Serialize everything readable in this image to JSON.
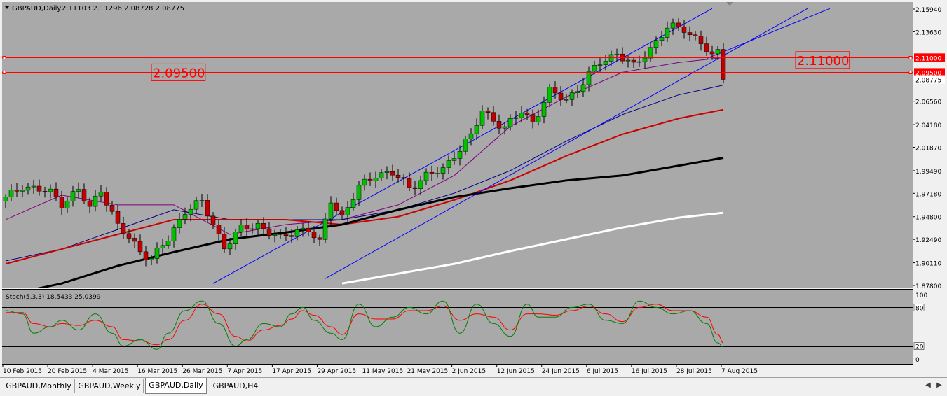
{
  "window": {
    "title": "GBPAUD,Daily",
    "ohlc": "2.11103 2.11296 2.08728 2.08775"
  },
  "colors": {
    "chart_bg": "#a9a9a9",
    "bull": "#00c000",
    "bear": "#c00000",
    "channel": "#0000ff",
    "level": "#ff0000",
    "stoch_main": "#008000",
    "stoch_signal": "#ff0000"
  },
  "labels": {
    "level_left": "2.09500",
    "level_right": "2.11000"
  },
  "chart_data": {
    "type": "candlestick",
    "symbol": "GBPAUD",
    "timeframe": "Daily",
    "ylim": [
      1.878,
      2.1594
    ],
    "price_ticks": [
      "2.15940",
      "2.13630",
      "2.11000",
      "2.09500",
      "2.08775",
      "2.06560",
      "2.04180",
      "2.01870",
      "1.99490",
      "1.97180",
      "1.94800",
      "1.92490",
      "1.90110",
      "1.87800"
    ],
    "current_price": "2.08775",
    "horizontal_levels": [
      2.11,
      2.095
    ],
    "date_labels": [
      "10 Feb 2015",
      "20 Feb 2015",
      "4 Mar 2015",
      "16 Mar 2015",
      "26 Mar 2015",
      "7 Apr 2015",
      "17 Apr 2015",
      "29 Apr 2015",
      "11 May 2015",
      "21 May 2015",
      "2 Jun 2015",
      "12 Jun 2015",
      "24 Jun 2015",
      "6 Jul 2015",
      "16 Jul 2015",
      "28 Jul 2015",
      "7 Aug 2015"
    ],
    "close_path": [
      [
        0,
        1.966
      ],
      [
        3,
        1.98
      ],
      [
        8,
        1.972
      ],
      [
        10,
        1.962
      ],
      [
        13,
        1.975
      ],
      [
        15,
        1.956
      ],
      [
        17,
        1.977
      ],
      [
        20,
        1.938
      ],
      [
        24,
        1.914
      ],
      [
        26,
        1.905
      ],
      [
        29,
        1.925
      ],
      [
        32,
        1.955
      ],
      [
        35,
        1.962
      ],
      [
        37,
        1.94
      ],
      [
        39,
        1.918
      ],
      [
        42,
        1.935
      ],
      [
        45,
        1.94
      ],
      [
        49,
        1.925
      ],
      [
        52,
        1.935
      ],
      [
        54,
        1.935
      ],
      [
        56,
        1.92
      ],
      [
        58,
        1.966
      ],
      [
        60,
        1.948
      ],
      [
        63,
        1.977
      ],
      [
        66,
        1.992
      ],
      [
        69,
        1.992
      ],
      [
        72,
        1.978
      ],
      [
        75,
        1.99
      ],
      [
        78,
        1.995
      ],
      [
        80,
        2.012
      ],
      [
        83,
        2.03
      ],
      [
        85,
        2.055
      ],
      [
        87,
        2.048
      ],
      [
        89,
        2.038
      ],
      [
        92,
        2.055
      ],
      [
        94,
        2.045
      ],
      [
        97,
        2.075
      ],
      [
        100,
        2.067
      ],
      [
        103,
        2.085
      ],
      [
        106,
        2.105
      ],
      [
        109,
        2.115
      ],
      [
        112,
        2.1
      ],
      [
        115,
        2.12
      ],
      [
        118,
        2.14
      ],
      [
        121,
        2.14
      ],
      [
        124,
        2.125
      ],
      [
        126,
        2.11
      ],
      [
        127,
        2.115
      ],
      [
        128,
        2.0878
      ]
    ],
    "moving_averages": [
      {
        "color": "#800080",
        "width": 1,
        "points": [
          [
            0,
            1.945
          ],
          [
            10,
            1.97
          ],
          [
            20,
            1.96
          ],
          [
            30,
            1.96
          ],
          [
            40,
            1.93
          ],
          [
            50,
            1.94
          ],
          [
            60,
            1.945
          ],
          [
            70,
            1.96
          ],
          [
            80,
            1.99
          ],
          [
            90,
            2.04
          ],
          [
            100,
            2.07
          ],
          [
            110,
            2.095
          ],
          [
            120,
            2.105
          ],
          [
            128,
            2.11
          ]
        ]
      },
      {
        "color": "#000080",
        "width": 1,
        "points": [
          [
            0,
            1.903
          ],
          [
            10,
            1.915
          ],
          [
            20,
            1.935
          ],
          [
            30,
            1.955
          ],
          [
            40,
            1.945
          ],
          [
            50,
            1.945
          ],
          [
            60,
            1.945
          ],
          [
            70,
            1.955
          ],
          [
            80,
            1.972
          ],
          [
            90,
            1.995
          ],
          [
            100,
            2.025
          ],
          [
            110,
            2.052
          ],
          [
            120,
            2.072
          ],
          [
            128,
            2.082
          ]
        ]
      },
      {
        "color": "#cc0000",
        "width": 2,
        "points": [
          [
            0,
            1.9
          ],
          [
            10,
            1.915
          ],
          [
            20,
            1.93
          ],
          [
            30,
            1.945
          ],
          [
            40,
            1.945
          ],
          [
            50,
            1.945
          ],
          [
            60,
            1.94
          ],
          [
            70,
            1.948
          ],
          [
            80,
            1.965
          ],
          [
            90,
            1.985
          ],
          [
            100,
            2.01
          ],
          [
            110,
            2.032
          ],
          [
            120,
            2.048
          ],
          [
            128,
            2.057
          ]
        ]
      },
      {
        "color": "#000000",
        "width": 3,
        "points": [
          [
            0,
            1.868
          ],
          [
            10,
            1.88
          ],
          [
            20,
            1.898
          ],
          [
            30,
            1.912
          ],
          [
            40,
            1.925
          ],
          [
            50,
            1.932
          ],
          [
            60,
            1.94
          ],
          [
            70,
            1.955
          ],
          [
            80,
            1.968
          ],
          [
            90,
            1.977
          ],
          [
            100,
            1.985
          ],
          [
            110,
            1.99
          ],
          [
            120,
            2.0
          ],
          [
            128,
            2.008
          ]
        ]
      },
      {
        "color": "#ffffff",
        "width": 3,
        "points": [
          [
            60,
            1.88
          ],
          [
            70,
            1.89
          ],
          [
            80,
            1.9
          ],
          [
            90,
            1.913
          ],
          [
            100,
            1.925
          ],
          [
            110,
            1.937
          ],
          [
            120,
            1.947
          ],
          [
            128,
            1.952
          ]
        ]
      }
    ],
    "channel": [
      {
        "from": [
          37,
          1.88
        ],
        "to": [
          126,
          2.16
        ]
      },
      {
        "from": [
          57,
          1.885
        ],
        "to": [
          143,
          2.16
        ]
      },
      {
        "from": [
          125,
          2.109
        ],
        "to": [
          147,
          2.16
        ]
      }
    ],
    "stochastic": {
      "label": "Stoch(5,3,3) 18.5433 25.0399",
      "ylim": [
        0,
        100
      ],
      "ticks": [
        "100",
        "80",
        "20",
        "0"
      ],
      "levels": [
        80,
        20
      ],
      "main": [
        [
          0,
          75
        ],
        [
          3,
          70
        ],
        [
          5,
          40
        ],
        [
          8,
          50
        ],
        [
          10,
          60
        ],
        [
          13,
          45
        ],
        [
          16,
          70
        ],
        [
          19,
          40
        ],
        [
          21,
          20
        ],
        [
          24,
          30
        ],
        [
          27,
          15
        ],
        [
          29,
          40
        ],
        [
          32,
          75
        ],
        [
          35,
          90
        ],
        [
          38,
          55
        ],
        [
          41,
          20
        ],
        [
          43,
          30
        ],
        [
          46,
          55
        ],
        [
          49,
          50
        ],
        [
          51,
          70
        ],
        [
          53,
          80
        ],
        [
          55,
          60
        ],
        [
          58,
          40
        ],
        [
          60,
          30
        ],
        [
          63,
          85
        ],
        [
          66,
          50
        ],
        [
          69,
          65
        ],
        [
          72,
          80
        ],
        [
          75,
          70
        ],
        [
          78,
          90
        ],
        [
          81,
          40
        ],
        [
          84,
          85
        ],
        [
          87,
          55
        ],
        [
          90,
          35
        ],
        [
          93,
          85
        ],
        [
          95,
          65
        ],
        [
          98,
          65
        ],
        [
          101,
          80
        ],
        [
          104,
          85
        ],
        [
          107,
          60
        ],
        [
          110,
          55
        ],
        [
          113,
          90
        ],
        [
          116,
          80
        ],
        [
          119,
          70
        ],
        [
          122,
          75
        ],
        [
          125,
          55
        ],
        [
          127,
          25
        ],
        [
          128,
          18.5
        ]
      ],
      "signal": [
        [
          0,
          72
        ],
        [
          3,
          72
        ],
        [
          5,
          55
        ],
        [
          8,
          50
        ],
        [
          10,
          55
        ],
        [
          13,
          52
        ],
        [
          16,
          60
        ],
        [
          19,
          50
        ],
        [
          21,
          30
        ],
        [
          24,
          28
        ],
        [
          27,
          22
        ],
        [
          29,
          30
        ],
        [
          32,
          60
        ],
        [
          35,
          85
        ],
        [
          38,
          70
        ],
        [
          41,
          35
        ],
        [
          43,
          28
        ],
        [
          46,
          45
        ],
        [
          49,
          52
        ],
        [
          51,
          62
        ],
        [
          53,
          75
        ],
        [
          55,
          68
        ],
        [
          58,
          50
        ],
        [
          60,
          38
        ],
        [
          63,
          70
        ],
        [
          66,
          62
        ],
        [
          69,
          62
        ],
        [
          72,
          75
        ],
        [
          75,
          75
        ],
        [
          78,
          82
        ],
        [
          81,
          60
        ],
        [
          84,
          70
        ],
        [
          87,
          65
        ],
        [
          90,
          45
        ],
        [
          93,
          70
        ],
        [
          95,
          70
        ],
        [
          98,
          68
        ],
        [
          101,
          75
        ],
        [
          104,
          82
        ],
        [
          107,
          70
        ],
        [
          110,
          58
        ],
        [
          113,
          80
        ],
        [
          116,
          85
        ],
        [
          119,
          75
        ],
        [
          122,
          75
        ],
        [
          125,
          65
        ],
        [
          127,
          38
        ],
        [
          128,
          25
        ]
      ]
    }
  },
  "tabs": [
    {
      "label": "GBPAUD,Monthly"
    },
    {
      "label": "GBPAUD,Weekly"
    },
    {
      "label": "GBPAUD,Daily"
    },
    {
      "label": "GBPAUD,H4"
    }
  ]
}
